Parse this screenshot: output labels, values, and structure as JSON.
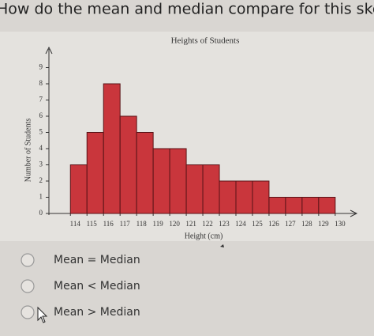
{
  "question": "How do the mean and median compare for this skewed data?",
  "chart_data": {
    "type": "histogram",
    "title": "Heights of Students",
    "x_label": "Height (cm)",
    "y_label": "Number of Students",
    "bins": [
      114,
      115,
      116,
      117,
      118,
      119,
      120,
      121,
      122,
      123,
      124,
      125,
      126,
      127,
      128,
      129,
      130
    ],
    "values": [
      3,
      5,
      8,
      6,
      5,
      4,
      4,
      3,
      3,
      2,
      2,
      2,
      1,
      1,
      1,
      1
    ],
    "color": "#c9363c",
    "xlim": [
      112.7,
      131.2
    ],
    "xticks": [
      114,
      115,
      116,
      117,
      118,
      119,
      120,
      121,
      122,
      123,
      124,
      125,
      126,
      127,
      128,
      129,
      130
    ],
    "ylim": [
      0,
      10
    ],
    "yticks": [
      0,
      1,
      2,
      3,
      4,
      5,
      6,
      7,
      8,
      9
    ],
    "grid": false
  },
  "options": [
    "Mean = Median",
    "Mean < Median",
    "Mean > Median"
  ]
}
